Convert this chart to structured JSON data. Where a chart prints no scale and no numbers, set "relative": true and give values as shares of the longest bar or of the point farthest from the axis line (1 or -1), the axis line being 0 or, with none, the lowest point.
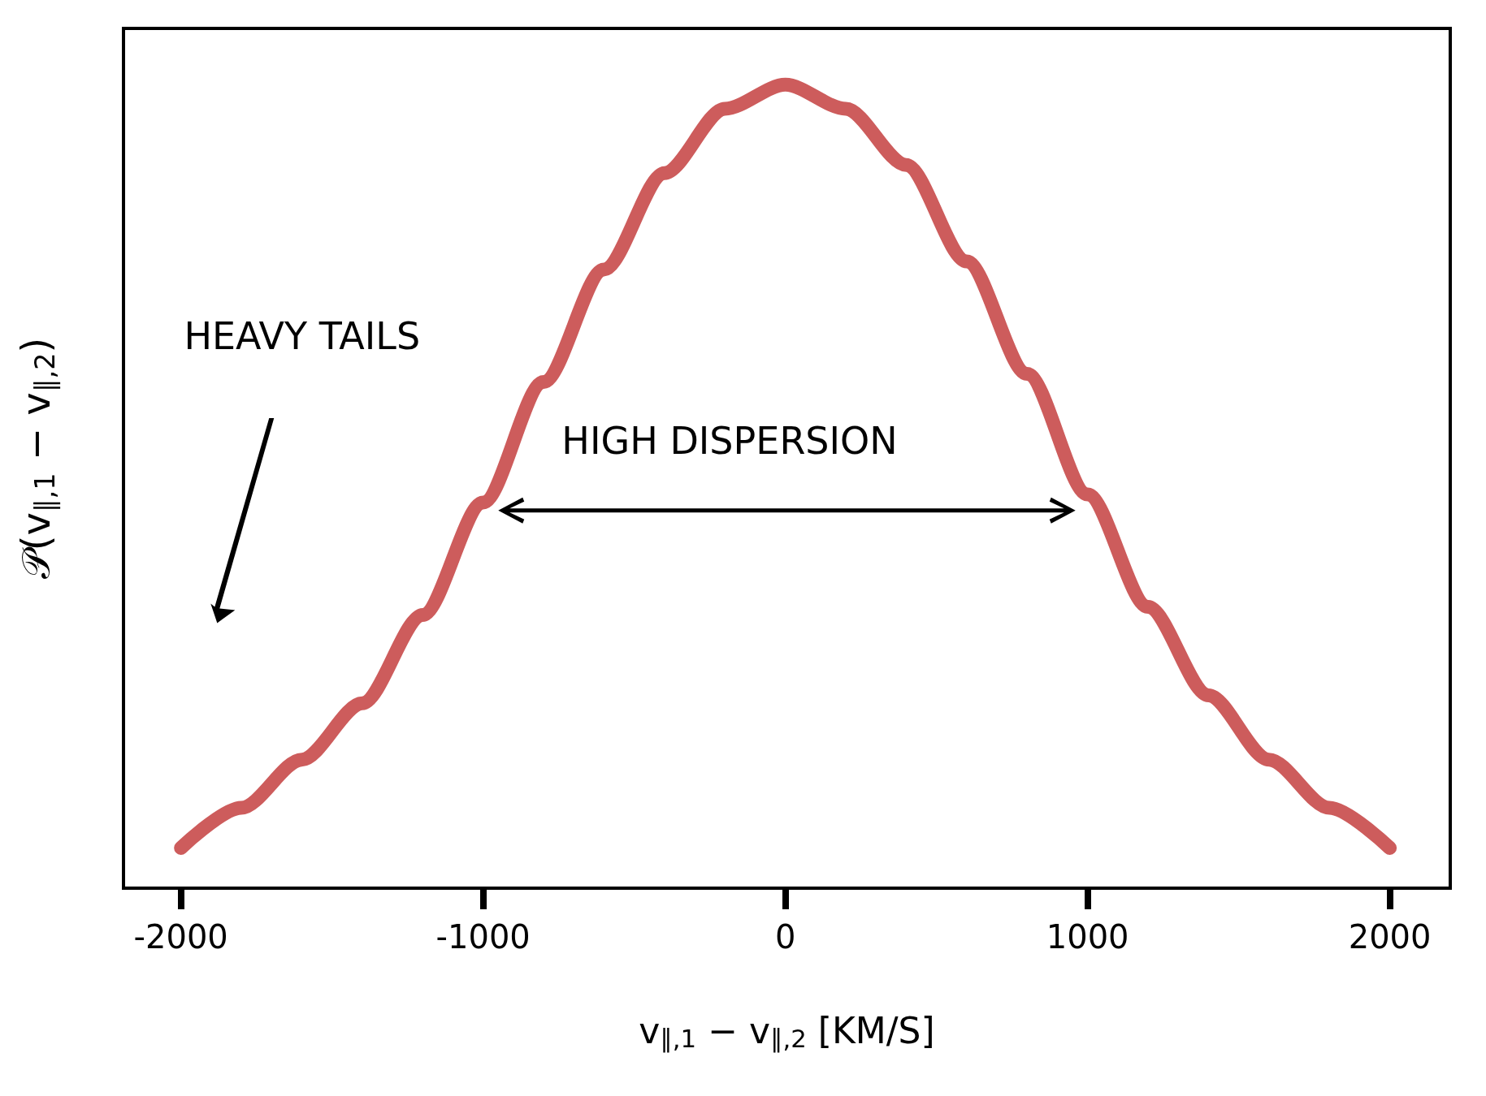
{
  "chart_data": {
    "type": "line",
    "relative": true,
    "xlabel": "v$_{∥,1}$ − v$_{∥,2}$ [KM/S]",
    "ylabel": "𝒫(v$_{∥,1}$ − v$_{∥,2}$)",
    "x": [
      -2000,
      -1800,
      -1600,
      -1400,
      -1200,
      -1000,
      -800,
      -600,
      -400,
      -200,
      0,
      200,
      400,
      600,
      800,
      1000,
      1200,
      1400,
      1600,
      1800,
      2000
    ],
    "series": [
      {
        "color": "#cd5c5c",
        "values": [
          0.05,
          0.1,
          0.16,
          0.23,
          0.34,
          0.48,
          0.63,
          0.77,
          0.89,
          0.97,
          1,
          0.97,
          0.9,
          0.78,
          0.64,
          0.49,
          0.35,
          0.24,
          0.16,
          0.1,
          0.05
        ]
      }
    ],
    "xlim": [
      -2190,
      2200
    ],
    "xticks": [
      -2000,
      -1000,
      0,
      1000,
      2000
    ],
    "annotations": [
      "HEAVY TAILS",
      "HIGH DISPERSION"
    ],
    "grid": false,
    "line_style": "solid"
  }
}
